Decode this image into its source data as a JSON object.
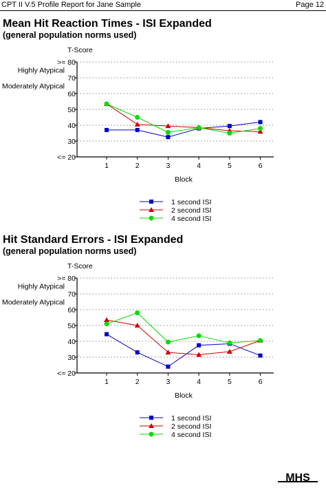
{
  "header": {
    "left": "CPT II V.5 Profile Report for Jane Sample",
    "right": "Page 12"
  },
  "colors": {
    "s1": "#0000cc",
    "s2": "#cc0000",
    "s3": "#00dd00",
    "grid": "#888888"
  },
  "logo": {
    "text": "MHS"
  },
  "charts": [
    {
      "title": "Mean Hit Reaction Times - ISI Expanded",
      "subtitle": "(general population norms used)"
    },
    {
      "title": "Hit Standard Errors - ISI Expanded",
      "subtitle": "(general population norms used)"
    }
  ],
  "chart_data": [
    {
      "type": "line",
      "title": "Mean Hit Reaction Times - ISI Expanded",
      "subtitle": "(general population norms used)",
      "ylabel": "T-Score",
      "xlabel": "Block",
      "x": [
        1,
        2,
        3,
        4,
        5,
        6
      ],
      "ylim": [
        20,
        80
      ],
      "yticks": [
        ">= 80",
        "70",
        "60",
        "50",
        "40",
        "30",
        "<= 20"
      ],
      "bands": [
        "Highly Atypical",
        "Moderately Atypical"
      ],
      "grid": true,
      "legend_placement": "bottom",
      "series": [
        {
          "name": "1 second ISI",
          "marker": "square",
          "values": [
            37,
            37,
            32.5,
            38,
            39.5,
            42
          ]
        },
        {
          "name": "2 second ISI",
          "marker": "triangle",
          "values": [
            53.5,
            40.5,
            39.5,
            38.5,
            36.5,
            36
          ]
        },
        {
          "name": "4 second ISI",
          "marker": "circle",
          "values": [
            53.5,
            45,
            35.5,
            38.5,
            35,
            38
          ]
        }
      ]
    },
    {
      "type": "line",
      "title": "Hit Standard Errors - ISI Expanded",
      "subtitle": "(general population norms used)",
      "ylabel": "T-Score",
      "xlabel": "Block",
      "x": [
        1,
        2,
        3,
        4,
        5,
        6
      ],
      "ylim": [
        20,
        80
      ],
      "yticks": [
        ">= 80",
        "70",
        "60",
        "50",
        "40",
        "30",
        "<= 20"
      ],
      "bands": [
        "Highly Atypical",
        "Moderately Atypical"
      ],
      "grid": true,
      "legend_placement": "bottom",
      "series": [
        {
          "name": "1 second ISI",
          "marker": "square",
          "values": [
            44.5,
            33,
            24,
            37.5,
            38.5,
            31
          ]
        },
        {
          "name": "2 second ISI",
          "marker": "triangle",
          "values": [
            53.5,
            50,
            33,
            31.5,
            33.5,
            40.5
          ]
        },
        {
          "name": "4 second ISI",
          "marker": "circle",
          "values": [
            51,
            58,
            39.5,
            43.5,
            39,
            40.5
          ]
        }
      ]
    }
  ]
}
